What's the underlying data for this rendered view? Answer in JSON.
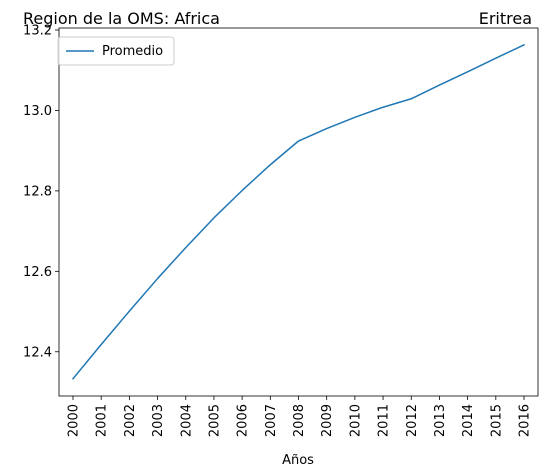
{
  "chart_data": {
    "type": "line",
    "title_left": "Region de la OMS: Africa",
    "title_right": "Eritrea",
    "xlabel": "Años",
    "ylabel": "",
    "x": [
      "2000",
      "2001",
      "2002",
      "2003",
      "2004",
      "2005",
      "2006",
      "2007",
      "2008",
      "2009",
      "2010",
      "2011",
      "2012",
      "2013",
      "2014",
      "2015",
      "2016"
    ],
    "series": [
      {
        "name": "Promedio",
        "color": "#1f77b4",
        "values": [
          12.333,
          12.418,
          12.501,
          12.582,
          12.659,
          12.733,
          12.801,
          12.865,
          12.924,
          12.955,
          12.983,
          13.008,
          13.029,
          13.063,
          13.096,
          13.13,
          13.163
        ]
      }
    ],
    "ylim": [
      12.29,
      13.205
    ],
    "yticks": [
      "12.4",
      "12.6",
      "12.8",
      "13.0",
      "13.2"
    ],
    "legend": "top-left",
    "grid": false
  }
}
